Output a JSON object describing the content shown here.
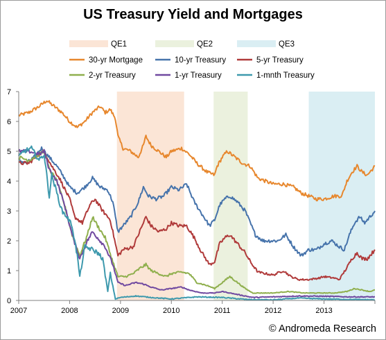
{
  "chart_data": {
    "type": "line",
    "title": "US Treasury Yield and Mortgages",
    "xlabel": "",
    "ylabel": "",
    "xlim": [
      2007.0,
      2014.0
    ],
    "ylim": [
      0,
      7
    ],
    "x_ticks": [
      2007,
      2008,
      2009,
      2010,
      2011,
      2012,
      2013
    ],
    "y_ticks": [
      0,
      1,
      2,
      3,
      4,
      5,
      6,
      7
    ],
    "grid": false,
    "legend_position": "top",
    "shaded_periods": [
      {
        "name": "QE1",
        "start": 2008.93,
        "end": 2010.25,
        "color": "#fbe5d6"
      },
      {
        "name": "QE2",
        "start": 2010.83,
        "end": 2011.5,
        "color": "#ebf1de"
      },
      {
        "name": "QE3",
        "start": 2012.7,
        "end": 2014.0,
        "color": "#daeef3"
      }
    ],
    "series": [
      {
        "name": "30-yr Mortgage",
        "color": "#e7872d",
        "points": [
          [
            2007.0,
            6.2
          ],
          [
            2007.2,
            6.3
          ],
          [
            2007.4,
            6.5
          ],
          [
            2007.55,
            6.7
          ],
          [
            2007.7,
            6.5
          ],
          [
            2007.85,
            6.3
          ],
          [
            2008.0,
            6.0
          ],
          [
            2008.15,
            5.8
          ],
          [
            2008.3,
            6.0
          ],
          [
            2008.45,
            6.3
          ],
          [
            2008.6,
            6.5
          ],
          [
            2008.7,
            6.3
          ],
          [
            2008.8,
            6.4
          ],
          [
            2008.9,
            6.1
          ],
          [
            2008.95,
            5.5
          ],
          [
            2009.05,
            5.1
          ],
          [
            2009.2,
            5.0
          ],
          [
            2009.35,
            4.8
          ],
          [
            2009.45,
            5.2
          ],
          [
            2009.5,
            5.5
          ],
          [
            2009.6,
            5.2
          ],
          [
            2009.75,
            5.0
          ],
          [
            2009.9,
            4.8
          ],
          [
            2010.0,
            5.0
          ],
          [
            2010.2,
            5.1
          ],
          [
            2010.35,
            4.9
          ],
          [
            2010.5,
            4.6
          ],
          [
            2010.7,
            4.3
          ],
          [
            2010.85,
            4.2
          ],
          [
            2010.9,
            4.5
          ],
          [
            2011.0,
            4.8
          ],
          [
            2011.1,
            5.0
          ],
          [
            2011.25,
            4.8
          ],
          [
            2011.4,
            4.6
          ],
          [
            2011.55,
            4.5
          ],
          [
            2011.7,
            4.1
          ],
          [
            2011.85,
            4.0
          ],
          [
            2012.0,
            3.9
          ],
          [
            2012.2,
            3.9
          ],
          [
            2012.4,
            3.8
          ],
          [
            2012.55,
            3.6
          ],
          [
            2012.7,
            3.5
          ],
          [
            2012.85,
            3.4
          ],
          [
            2013.0,
            3.4
          ],
          [
            2013.2,
            3.5
          ],
          [
            2013.35,
            3.5
          ],
          [
            2013.45,
            4.0
          ],
          [
            2013.55,
            4.3
          ],
          [
            2013.65,
            4.5
          ],
          [
            2013.75,
            4.3
          ],
          [
            2013.85,
            4.2
          ],
          [
            2013.95,
            4.4
          ],
          [
            2014.0,
            4.5
          ]
        ]
      },
      {
        "name": "10-yr Treasury",
        "color": "#4673ab",
        "points": [
          [
            2007.0,
            4.7
          ],
          [
            2007.15,
            4.6
          ],
          [
            2007.3,
            4.8
          ],
          [
            2007.45,
            5.1
          ],
          [
            2007.6,
            4.8
          ],
          [
            2007.75,
            4.5
          ],
          [
            2007.9,
            4.1
          ],
          [
            2008.0,
            3.8
          ],
          [
            2008.15,
            3.6
          ],
          [
            2008.3,
            3.8
          ],
          [
            2008.45,
            4.1
          ],
          [
            2008.6,
            3.8
          ],
          [
            2008.75,
            3.7
          ],
          [
            2008.85,
            3.3
          ],
          [
            2008.95,
            2.3
          ],
          [
            2009.05,
            2.5
          ],
          [
            2009.2,
            2.8
          ],
          [
            2009.35,
            3.3
          ],
          [
            2009.45,
            3.8
          ],
          [
            2009.55,
            3.5
          ],
          [
            2009.7,
            3.4
          ],
          [
            2009.85,
            3.5
          ],
          [
            2010.0,
            3.8
          ],
          [
            2010.15,
            3.7
          ],
          [
            2010.3,
            3.9
          ],
          [
            2010.45,
            3.3
          ],
          [
            2010.6,
            2.9
          ],
          [
            2010.75,
            2.5
          ],
          [
            2010.85,
            2.7
          ],
          [
            2010.95,
            3.2
          ],
          [
            2011.05,
            3.4
          ],
          [
            2011.15,
            3.5
          ],
          [
            2011.3,
            3.3
          ],
          [
            2011.45,
            3.0
          ],
          [
            2011.55,
            2.6
          ],
          [
            2011.65,
            2.2
          ],
          [
            2011.8,
            2.0
          ],
          [
            2011.95,
            2.0
          ],
          [
            2012.1,
            2.0
          ],
          [
            2012.25,
            2.2
          ],
          [
            2012.4,
            1.8
          ],
          [
            2012.55,
            1.5
          ],
          [
            2012.7,
            1.7
          ],
          [
            2012.85,
            1.7
          ],
          [
            2013.0,
            1.9
          ],
          [
            2013.15,
            2.0
          ],
          [
            2013.3,
            1.8
          ],
          [
            2013.4,
            1.7
          ],
          [
            2013.5,
            2.2
          ],
          [
            2013.6,
            2.6
          ],
          [
            2013.7,
            2.8
          ],
          [
            2013.8,
            2.6
          ],
          [
            2013.9,
            2.8
          ],
          [
            2014.0,
            3.0
          ]
        ]
      },
      {
        "name": "5-yr Treasury",
        "color": "#b03a3a",
        "points": [
          [
            2007.0,
            4.6
          ],
          [
            2007.2,
            4.6
          ],
          [
            2007.4,
            4.9
          ],
          [
            2007.5,
            5.0
          ],
          [
            2007.65,
            4.5
          ],
          [
            2007.8,
            4.1
          ],
          [
            2008.0,
            3.4
          ],
          [
            2008.1,
            2.8
          ],
          [
            2008.25,
            2.6
          ],
          [
            2008.4,
            3.2
          ],
          [
            2008.5,
            3.4
          ],
          [
            2008.65,
            3.0
          ],
          [
            2008.8,
            2.7
          ],
          [
            2008.95,
            1.5
          ],
          [
            2009.05,
            1.7
          ],
          [
            2009.25,
            1.8
          ],
          [
            2009.4,
            2.4
          ],
          [
            2009.5,
            2.8
          ],
          [
            2009.6,
            2.5
          ],
          [
            2009.75,
            2.3
          ],
          [
            2009.9,
            2.4
          ],
          [
            2010.0,
            2.6
          ],
          [
            2010.15,
            2.5
          ],
          [
            2010.3,
            2.5
          ],
          [
            2010.45,
            2.1
          ],
          [
            2010.6,
            1.6
          ],
          [
            2010.75,
            1.2
          ],
          [
            2010.85,
            1.3
          ],
          [
            2010.95,
            1.9
          ],
          [
            2011.05,
            2.1
          ],
          [
            2011.15,
            2.2
          ],
          [
            2011.3,
            1.9
          ],
          [
            2011.45,
            1.6
          ],
          [
            2011.55,
            1.3
          ],
          [
            2011.7,
            0.95
          ],
          [
            2011.85,
            0.9
          ],
          [
            2012.0,
            0.85
          ],
          [
            2012.2,
            1.0
          ],
          [
            2012.35,
            0.8
          ],
          [
            2012.5,
            0.7
          ],
          [
            2012.7,
            0.7
          ],
          [
            2012.9,
            0.75
          ],
          [
            2013.0,
            0.8
          ],
          [
            2013.2,
            0.75
          ],
          [
            2013.3,
            0.7
          ],
          [
            2013.45,
            1.1
          ],
          [
            2013.55,
            1.4
          ],
          [
            2013.65,
            1.6
          ],
          [
            2013.75,
            1.4
          ],
          [
            2013.85,
            1.4
          ],
          [
            2013.95,
            1.6
          ],
          [
            2014.0,
            1.7
          ]
        ]
      },
      {
        "name": "2-yr Treasury",
        "color": "#8faf4d",
        "points": [
          [
            2007.0,
            4.8
          ],
          [
            2007.2,
            4.7
          ],
          [
            2007.4,
            4.9
          ],
          [
            2007.5,
            5.0
          ],
          [
            2007.6,
            4.4
          ],
          [
            2007.75,
            4.0
          ],
          [
            2007.9,
            3.2
          ],
          [
            2008.05,
            2.2
          ],
          [
            2008.2,
            1.5
          ],
          [
            2008.35,
            2.2
          ],
          [
            2008.45,
            2.8
          ],
          [
            2008.55,
            2.5
          ],
          [
            2008.7,
            2.1
          ],
          [
            2008.85,
            1.3
          ],
          [
            2008.95,
            0.8
          ],
          [
            2009.1,
            0.8
          ],
          [
            2009.25,
            0.9
          ],
          [
            2009.4,
            1.1
          ],
          [
            2009.5,
            1.2
          ],
          [
            2009.6,
            1.0
          ],
          [
            2009.75,
            0.9
          ],
          [
            2009.9,
            0.8
          ],
          [
            2010.0,
            0.9
          ],
          [
            2010.2,
            0.95
          ],
          [
            2010.35,
            0.9
          ],
          [
            2010.5,
            0.6
          ],
          [
            2010.7,
            0.5
          ],
          [
            2010.85,
            0.4
          ],
          [
            2011.0,
            0.6
          ],
          [
            2011.15,
            0.8
          ],
          [
            2011.3,
            0.6
          ],
          [
            2011.45,
            0.4
          ],
          [
            2011.6,
            0.25
          ],
          [
            2011.8,
            0.25
          ],
          [
            2012.0,
            0.25
          ],
          [
            2012.3,
            0.3
          ],
          [
            2012.6,
            0.25
          ],
          [
            2012.9,
            0.25
          ],
          [
            2013.2,
            0.25
          ],
          [
            2013.45,
            0.3
          ],
          [
            2013.6,
            0.4
          ],
          [
            2013.75,
            0.35
          ],
          [
            2013.9,
            0.3
          ],
          [
            2014.0,
            0.35
          ]
        ]
      },
      {
        "name": "1-yr Treasury",
        "color": "#7049a0",
        "points": [
          [
            2007.0,
            5.0
          ],
          [
            2007.2,
            5.0
          ],
          [
            2007.4,
            4.9
          ],
          [
            2007.5,
            5.0
          ],
          [
            2007.6,
            4.4
          ],
          [
            2007.75,
            4.0
          ],
          [
            2007.9,
            3.2
          ],
          [
            2008.05,
            2.2
          ],
          [
            2008.2,
            1.4
          ],
          [
            2008.35,
            2.0
          ],
          [
            2008.45,
            2.3
          ],
          [
            2008.55,
            2.1
          ],
          [
            2008.7,
            1.8
          ],
          [
            2008.85,
            1.2
          ],
          [
            2008.95,
            0.6
          ],
          [
            2009.1,
            0.5
          ],
          [
            2009.3,
            0.6
          ],
          [
            2009.45,
            0.55
          ],
          [
            2009.6,
            0.45
          ],
          [
            2009.8,
            0.35
          ],
          [
            2010.0,
            0.4
          ],
          [
            2010.2,
            0.45
          ],
          [
            2010.35,
            0.35
          ],
          [
            2010.6,
            0.25
          ],
          [
            2010.85,
            0.25
          ],
          [
            2011.0,
            0.3
          ],
          [
            2011.3,
            0.2
          ],
          [
            2011.6,
            0.1
          ],
          [
            2012.0,
            0.12
          ],
          [
            2012.5,
            0.15
          ],
          [
            2013.0,
            0.14
          ],
          [
            2013.5,
            0.12
          ],
          [
            2014.0,
            0.12
          ]
        ]
      },
      {
        "name": "1-mnth Treasury",
        "color": "#3d99ad",
        "points": [
          [
            2007.0,
            4.8
          ],
          [
            2007.1,
            5.0
          ],
          [
            2007.25,
            5.1
          ],
          [
            2007.4,
            4.7
          ],
          [
            2007.5,
            4.9
          ],
          [
            2007.6,
            3.5
          ],
          [
            2007.65,
            4.2
          ],
          [
            2007.75,
            3.6
          ],
          [
            2007.85,
            3.0
          ],
          [
            2007.95,
            2.8
          ],
          [
            2008.05,
            2.5
          ],
          [
            2008.15,
            1.5
          ],
          [
            2008.2,
            0.8
          ],
          [
            2008.3,
            1.8
          ],
          [
            2008.45,
            1.7
          ],
          [
            2008.55,
            1.6
          ],
          [
            2008.65,
            1.4
          ],
          [
            2008.75,
            0.3
          ],
          [
            2008.8,
            0.9
          ],
          [
            2008.9,
            0.05
          ],
          [
            2009.0,
            0.1
          ],
          [
            2009.3,
            0.15
          ],
          [
            2009.6,
            0.1
          ],
          [
            2010.0,
            0.05
          ],
          [
            2010.5,
            0.12
          ],
          [
            2011.0,
            0.1
          ],
          [
            2011.5,
            0.03
          ],
          [
            2012.0,
            0.02
          ],
          [
            2012.5,
            0.08
          ],
          [
            2013.0,
            0.05
          ],
          [
            2013.5,
            0.03
          ],
          [
            2014.0,
            0.02
          ]
        ]
      }
    ]
  },
  "copyright": "© Andromeda Research"
}
